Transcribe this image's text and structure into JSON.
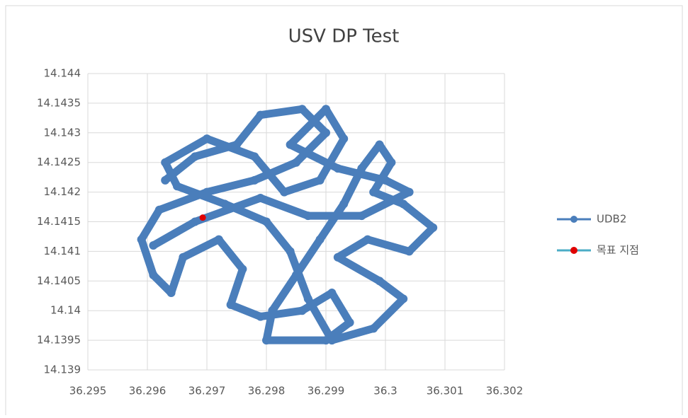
{
  "chart_data": {
    "type": "scatter",
    "title": "USV DP Test",
    "xlim": [
      36.295,
      36.302
    ],
    "xticks": [
      36.295,
      36.296,
      36.297,
      36.298,
      36.299,
      36.3,
      36.301,
      36.302
    ],
    "ylim": [
      14.139,
      14.144
    ],
    "yticks": [
      14.139,
      14.1395,
      14.14,
      14.1405,
      14.141,
      14.1415,
      14.142,
      14.1425,
      14.143,
      14.1435,
      14.144
    ],
    "grid": true,
    "legend": "right",
    "series": [
      {
        "name": "UDB2",
        "color": "#4a7ebb",
        "line": true,
        "x": [
          36.2963,
          36.2968,
          36.2975,
          36.2979,
          36.2986,
          36.299,
          36.2985,
          36.2978,
          36.297,
          36.2962,
          36.2959,
          36.2961,
          36.2964,
          36.2966,
          36.2972,
          36.2976,
          36.2974,
          36.2979,
          36.2986,
          36.2991,
          36.2994,
          36.299,
          36.298,
          36.2981,
          36.2985,
          36.2989,
          36.2993,
          36.2996,
          36.2999,
          36.3001,
          36.2998,
          36.3003,
          36.3008,
          36.3004,
          36.2997,
          36.2992,
          36.2999,
          36.3003,
          36.2998,
          36.2991,
          36.2987,
          36.2984,
          36.298,
          36.2973,
          36.2965,
          36.2963,
          36.297,
          36.2978,
          36.2983,
          36.2989,
          36.2993,
          36.299,
          36.2984,
          36.2992,
          36.3,
          36.3004,
          36.2996,
          36.2987,
          36.2979,
          36.2968,
          36.2961
        ],
        "values": [
          14.1422,
          14.1426,
          14.1428,
          14.1433,
          14.1434,
          14.143,
          14.1425,
          14.1422,
          14.142,
          14.1417,
          14.1412,
          14.1406,
          14.1403,
          14.1409,
          14.1412,
          14.1407,
          14.1401,
          14.1399,
          14.14,
          14.1403,
          14.1398,
          14.1395,
          14.1395,
          14.14,
          14.1406,
          14.1412,
          14.1418,
          14.1424,
          14.1428,
          14.1425,
          14.142,
          14.1418,
          14.1414,
          14.141,
          14.1412,
          14.1409,
          14.1405,
          14.1402,
          14.1397,
          14.1395,
          14.1402,
          14.141,
          14.1415,
          14.1418,
          14.1421,
          14.1425,
          14.1429,
          14.1426,
          14.142,
          14.1422,
          14.1429,
          14.1434,
          14.1428,
          14.1424,
          14.1422,
          14.142,
          14.1416,
          14.1416,
          14.1419,
          14.1415,
          14.1411
        ]
      },
      {
        "name": "목표 지점",
        "color": "#e00000",
        "line_color": "#4bacc6",
        "line": false,
        "x": [
          36.29693
        ],
        "values": [
          14.14157
        ]
      }
    ]
  }
}
